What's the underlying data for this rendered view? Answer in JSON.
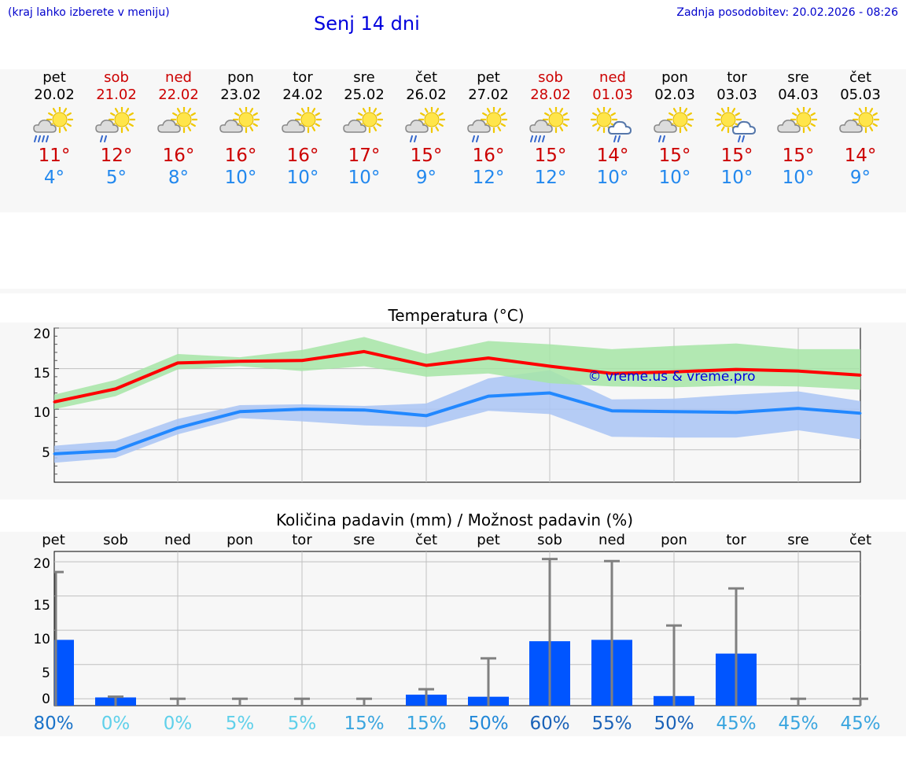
{
  "header": {
    "hint": "(kraj lahko izberete v meniju)",
    "title": "Senj 14 dni",
    "updated": "Zadnja posodobitev: 20.02.2026 - 08:26"
  },
  "days": [
    {
      "name": "pet",
      "date": "20.02",
      "weekend": false,
      "icon": "sun-cloud-heavy-rain-icon",
      "tmax": "11°",
      "tmin": "4°"
    },
    {
      "name": "sob",
      "date": "21.02",
      "weekend": true,
      "icon": "sun-cloud-rain-icon",
      "tmax": "12°",
      "tmin": "5°"
    },
    {
      "name": "ned",
      "date": "22.02",
      "weekend": true,
      "icon": "sun-cloud-icon",
      "tmax": "16°",
      "tmin": "8°"
    },
    {
      "name": "pon",
      "date": "23.02",
      "weekend": false,
      "icon": "sun-cloud-icon",
      "tmax": "16°",
      "tmin": "10°"
    },
    {
      "name": "tor",
      "date": "24.02",
      "weekend": false,
      "icon": "sun-cloud-icon",
      "tmax": "16°",
      "tmin": "10°"
    },
    {
      "name": "sre",
      "date": "25.02",
      "weekend": false,
      "icon": "sun-cloud-icon",
      "tmax": "17°",
      "tmin": "10°"
    },
    {
      "name": "čet",
      "date": "26.02",
      "weekend": false,
      "icon": "sun-cloud-rain-icon",
      "tmax": "15°",
      "tmin": "9°"
    },
    {
      "name": "pet",
      "date": "27.02",
      "weekend": false,
      "icon": "sun-cloud-rain-icon",
      "tmax": "16°",
      "tmin": "12°"
    },
    {
      "name": "sob",
      "date": "28.02",
      "weekend": true,
      "icon": "sun-cloud-heavy-rain-icon",
      "tmax": "15°",
      "tmin": "12°"
    },
    {
      "name": "ned",
      "date": "01.03",
      "weekend": true,
      "icon": "sun-storm-cloud-rain-icon",
      "tmax": "14°",
      "tmin": "10°"
    },
    {
      "name": "pon",
      "date": "02.03",
      "weekend": false,
      "icon": "sun-cloud-rain-icon",
      "tmax": "15°",
      "tmin": "10°"
    },
    {
      "name": "tor",
      "date": "03.03",
      "weekend": false,
      "icon": "sun-storm-cloud-rain-icon",
      "tmax": "15°",
      "tmin": "10°"
    },
    {
      "name": "sre",
      "date": "04.03",
      "weekend": false,
      "icon": "sun-cloud-icon",
      "tmax": "15°",
      "tmin": "10°"
    },
    {
      "name": "čet",
      "date": "05.03",
      "weekend": false,
      "icon": "sun-cloud-icon",
      "tmax": "14°",
      "tmin": "9°"
    }
  ],
  "colors": {
    "max_line": "#ff0000",
    "max_band": "#a6e5a6",
    "min_line": "#2288ff",
    "min_band": "#a9c4f5",
    "bar": "#0055ff",
    "errbar": "#808080",
    "weekend": "#cc0000",
    "tmin": "#2288ee"
  },
  "chart_data": [
    {
      "type": "line",
      "title": "Temperatura (°C)",
      "ylim": [
        1,
        20
      ],
      "yticks": [
        "20",
        "15",
        "10",
        "5"
      ],
      "watermark": "© vreme.us & vreme.pro",
      "series": [
        {
          "name": "max",
          "values": [
            10.9,
            12.5,
            15.7,
            15.9,
            16.0,
            17.1,
            15.4,
            16.3,
            15.3,
            14.4,
            14.6,
            14.9,
            14.7,
            14.2
          ],
          "band_low": [
            10.0,
            11.6,
            14.9,
            15.3,
            14.7,
            15.3,
            14.0,
            14.4,
            13.2,
            12.8,
            12.7,
            12.9,
            12.8,
            12.4
          ],
          "band_high": [
            11.8,
            13.6,
            16.8,
            16.4,
            17.3,
            18.9,
            16.8,
            18.4,
            18.0,
            17.4,
            17.8,
            18.1,
            17.4,
            17.4
          ]
        },
        {
          "name": "min",
          "values": [
            4.5,
            4.9,
            7.7,
            9.7,
            10.0,
            9.9,
            9.2,
            11.6,
            12.0,
            9.8,
            9.7,
            9.6,
            10.1,
            9.5
          ],
          "band_low": [
            3.4,
            4.0,
            6.9,
            8.9,
            8.5,
            8.0,
            7.8,
            9.8,
            9.4,
            6.6,
            6.5,
            6.5,
            7.4,
            6.3
          ],
          "band_high": [
            5.5,
            6.1,
            8.8,
            10.5,
            10.6,
            10.4,
            10.7,
            13.8,
            14.8,
            11.2,
            11.3,
            11.8,
            12.2,
            11.0
          ]
        }
      ]
    },
    {
      "type": "bar",
      "title": "Količina padavin (mm) / Možnost padavin (%)",
      "ylim": [
        -1,
        21.5
      ],
      "yticks": [
        "20",
        "15",
        "10",
        "5",
        "0"
      ],
      "categories": [
        "pet",
        "sob",
        "ned",
        "pon",
        "tor",
        "sre",
        "čet",
        "pet",
        "sob",
        "ned",
        "pon",
        "tor",
        "sre",
        "čet"
      ],
      "values": [
        8.6,
        0.2,
        0,
        0,
        0,
        0,
        0.6,
        0.3,
        8.4,
        8.6,
        0.4,
        6.6,
        0,
        0
      ],
      "error_high": [
        18.5,
        0.3,
        0,
        0,
        0,
        0,
        1.4,
        5.9,
        20.4,
        20.1,
        10.7,
        16.1,
        0,
        0
      ],
      "probability": [
        "80%",
        "0%",
        "0%",
        "5%",
        "5%",
        "15%",
        "15%",
        "50%",
        "60%",
        "55%",
        "50%",
        "45%",
        "45%",
        "45%"
      ],
      "probability_colors": [
        "#1a73c9",
        "#5fd0ea",
        "#5fd0ea",
        "#5fd0ea",
        "#5fd0ea",
        "#3aa5df",
        "#3aa5df",
        "#2288d8",
        "#1a62b8",
        "#1a62b8",
        "#1a62b8",
        "#3aa5df",
        "#3aa5df",
        "#3aa5df"
      ]
    }
  ]
}
